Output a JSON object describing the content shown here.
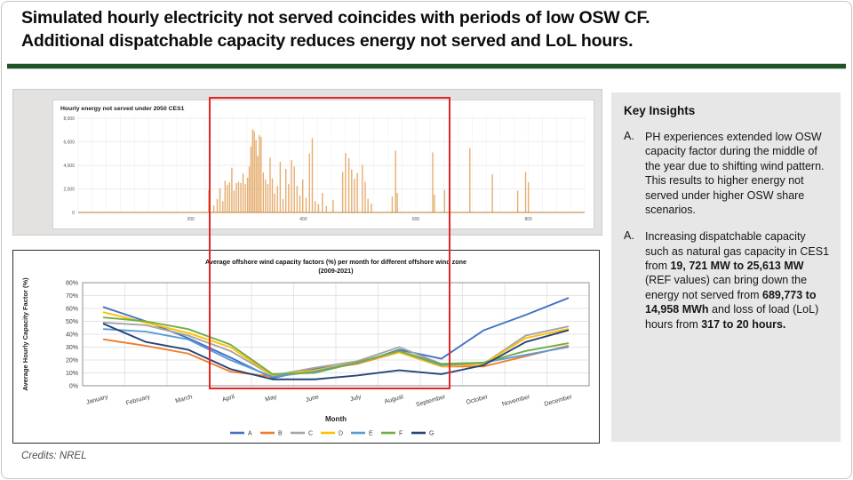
{
  "slide": {
    "title_line1": "Simulated hourly electricity not served coincides with periods of low OSW CF.",
    "title_line2": "Additional dispatchable capacity reduces energy not served and LoL hours.",
    "credits": "Credits: NREL",
    "accent_green": "#1e5426",
    "highlight_red": "#e12726"
  },
  "insights": {
    "heading": "Key Insights",
    "items": [
      {
        "marker": "A.",
        "segments": [
          {
            "text": "PH experiences extended low OSW capacity factor during the middle of the year due to shifting wind pattern. This results to higher energy not served under higher OSW share scenarios.",
            "bold": false
          }
        ]
      },
      {
        "marker": "A.",
        "segments": [
          {
            "text": "Increasing dispatchable capacity such as natural gas capacity in CES1 from ",
            "bold": false
          },
          {
            "text": "19, 721 MW to 25,613 MW",
            "bold": true
          },
          {
            "text": " (REF values) can bring down the energy not served from ",
            "bold": false
          },
          {
            "text": "689,773 to 14,958 MWh",
            "bold": true
          },
          {
            "text": " and loss of load (LoL) hours from ",
            "bold": false
          },
          {
            "text": "317 to 20 hours.",
            "bold": true
          }
        ]
      }
    ]
  },
  "chart_data": [
    {
      "type": "bar",
      "title": "Hourly energy not served under 2050 CES1",
      "xlabel": "",
      "ylabel": "",
      "xlim": [
        0,
        900
      ],
      "ylim": [
        0,
        8000
      ],
      "xticks": [
        200,
        400,
        600,
        800
      ],
      "yticks": [
        0,
        2000,
        4000,
        6000,
        8000
      ],
      "ytick_labels": [
        "0",
        "2,000",
        "4,000",
        "6,000",
        "8,000"
      ],
      "bar_color": "#e2a45f",
      "baseline_color": "#c89457",
      "grid": true,
      "bars": [
        [
          232,
          1900
        ],
        [
          241,
          600
        ],
        [
          247,
          1150
        ],
        [
          252,
          2050
        ],
        [
          257,
          950
        ],
        [
          261,
          2700
        ],
        [
          265,
          2350
        ],
        [
          269,
          2550
        ],
        [
          273,
          3800
        ],
        [
          277,
          1850
        ],
        [
          281,
          2500
        ],
        [
          285,
          2600
        ],
        [
          289,
          2500
        ],
        [
          293,
          3300
        ],
        [
          297,
          2400
        ],
        [
          301,
          2950
        ],
        [
          304,
          3900
        ],
        [
          307,
          5600
        ],
        [
          310,
          7050
        ],
        [
          313,
          6900
        ],
        [
          316,
          6150
        ],
        [
          319,
          4800
        ],
        [
          322,
          6550
        ],
        [
          325,
          6400
        ],
        [
          329,
          3400
        ],
        [
          333,
          2800
        ],
        [
          337,
          2400
        ],
        [
          341,
          4650
        ],
        [
          345,
          2900
        ],
        [
          349,
          1600
        ],
        [
          354,
          2250
        ],
        [
          359,
          4300
        ],
        [
          364,
          1150
        ],
        [
          369,
          3700
        ],
        [
          374,
          2400
        ],
        [
          379,
          4450
        ],
        [
          384,
          3900
        ],
        [
          389,
          2250
        ],
        [
          394,
          1450
        ],
        [
          399,
          2800
        ],
        [
          405,
          1250
        ],
        [
          411,
          5000
        ],
        [
          416,
          6300
        ],
        [
          421,
          950
        ],
        [
          427,
          700
        ],
        [
          434,
          1650
        ],
        [
          441,
          550
        ],
        [
          453,
          1050
        ],
        [
          470,
          3450
        ],
        [
          475,
          5050
        ],
        [
          481,
          4600
        ],
        [
          486,
          3650
        ],
        [
          491,
          2850
        ],
        [
          496,
          3350
        ],
        [
          505,
          4050
        ],
        [
          510,
          2600
        ],
        [
          515,
          1150
        ],
        [
          521,
          750
        ],
        [
          558,
          1350
        ],
        [
          564,
          5250
        ],
        [
          567,
          1650
        ],
        [
          630,
          5100
        ],
        [
          633,
          1500
        ],
        [
          651,
          1900
        ],
        [
          696,
          5450
        ],
        [
          736,
          3250
        ],
        [
          781,
          1850
        ],
        [
          795,
          3450
        ],
        [
          800,
          2550
        ]
      ]
    },
    {
      "type": "line",
      "title_line1": "Average offshore wind capacity factors (%) per month for different offshore wind zone",
      "title_line2": "(2009-2021)",
      "ylabel": "Average Hourly Capacity Factor (%)",
      "xlabel": "Month",
      "categories": [
        "January",
        "February",
        "March",
        "April",
        "May",
        "June",
        "July",
        "August",
        "September",
        "October",
        "November",
        "December"
      ],
      "ylim": [
        0,
        80
      ],
      "yticks": [
        0,
        10,
        20,
        30,
        40,
        50,
        60,
        70,
        80
      ],
      "ytick_labels": [
        "0%",
        "10%",
        "20%",
        "30%",
        "40%",
        "50%",
        "60%",
        "70%",
        "80%"
      ],
      "grid": true,
      "legend_position": "bottom",
      "series": [
        {
          "name": "A",
          "color": "#4472C4",
          "values": [
            61,
            50,
            37,
            22,
            6,
            13,
            17,
            28,
            21,
            43,
            55,
            68
          ]
        },
        {
          "name": "B",
          "color": "#ED7D31",
          "values": [
            36,
            31,
            25,
            11,
            7,
            12,
            17,
            26,
            15,
            15,
            23,
            31
          ]
        },
        {
          "name": "C",
          "color": "#A5A5A5",
          "values": [
            49,
            47,
            39,
            27,
            8,
            14,
            19,
            30,
            17,
            17,
            39,
            46
          ]
        },
        {
          "name": "D",
          "color": "#FFC000",
          "values": [
            57,
            49,
            41,
            30,
            8,
            12,
            18,
            26,
            15,
            17,
            37,
            44
          ]
        },
        {
          "name": "E",
          "color": "#5B9BD5",
          "values": [
            44,
            42,
            36,
            20,
            7,
            11,
            18,
            27,
            16,
            18,
            24,
            30
          ]
        },
        {
          "name": "F",
          "color": "#70AD47",
          "values": [
            53,
            50,
            44,
            32,
            9,
            10,
            18,
            27,
            17,
            18,
            27,
            33
          ]
        },
        {
          "name": "G",
          "color": "#264478",
          "values": [
            48,
            34,
            28,
            13,
            5,
            5,
            8,
            12,
            9,
            16,
            34,
            43
          ]
        }
      ]
    }
  ]
}
